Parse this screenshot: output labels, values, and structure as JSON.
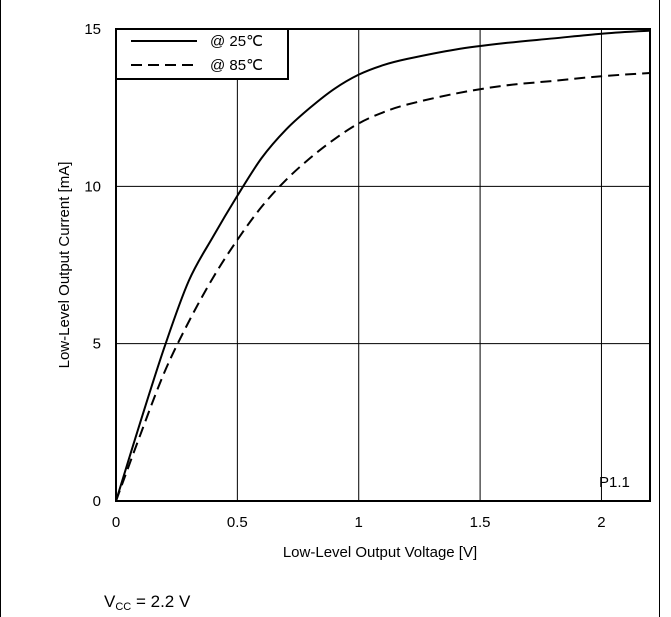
{
  "chart_data": {
    "type": "line",
    "title": "",
    "xlabel": "Low-Level Output Voltage [V]",
    "ylabel": "Low-Level Output Current [mA]",
    "xlim": [
      0,
      2.2
    ],
    "ylim": [
      0,
      15
    ],
    "xticks": [
      0,
      0.5,
      1,
      1.5,
      2
    ],
    "xtick_labels": [
      "0",
      "0.5",
      "1",
      "1.5",
      "2"
    ],
    "yticks": [
      0,
      5,
      10,
      15
    ],
    "ytick_labels": [
      "0",
      "5",
      "10",
      "15"
    ],
    "grid": true,
    "legend_position": "top-left",
    "annotation": "P1.1",
    "series": [
      {
        "name": "@ 25℃",
        "style": "solid",
        "color": "#000000",
        "x": [
          0,
          0.1,
          0.2,
          0.3,
          0.4,
          0.5,
          0.6,
          0.7,
          0.8,
          0.9,
          1.0,
          1.1,
          1.2,
          1.4,
          1.6,
          1.8,
          2.0,
          2.2
        ],
        "y": [
          0,
          2.5,
          4.9,
          7.0,
          8.4,
          9.7,
          10.9,
          11.8,
          12.5,
          13.1,
          13.55,
          13.85,
          14.05,
          14.35,
          14.55,
          14.7,
          14.85,
          14.95
        ]
      },
      {
        "name": "@ 85℃",
        "style": "dashed",
        "color": "#000000",
        "x": [
          0,
          0.1,
          0.2,
          0.3,
          0.4,
          0.5,
          0.6,
          0.7,
          0.8,
          0.9,
          1.0,
          1.1,
          1.2,
          1.4,
          1.6,
          1.8,
          2.0,
          2.2
        ],
        "y": [
          0,
          2.1,
          4.1,
          5.7,
          7.1,
          8.3,
          9.35,
          10.2,
          10.9,
          11.5,
          12.0,
          12.35,
          12.6,
          12.95,
          13.2,
          13.35,
          13.5,
          13.6
        ]
      }
    ]
  },
  "footer": {
    "vcc_symbol": "V",
    "vcc_subscript": "CC",
    "vcc_value": " = 2.2 V"
  }
}
